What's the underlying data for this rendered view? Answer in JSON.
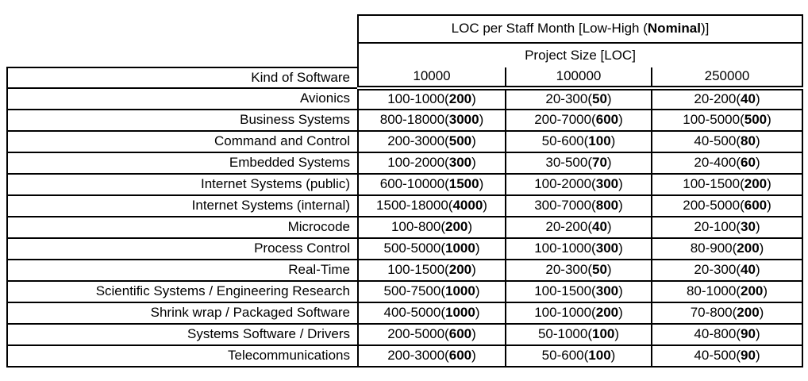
{
  "header": {
    "title": {
      "prefix": "LOC per Staff Month [Low-High (",
      "bold": "Nominal",
      "suffix": ")]"
    },
    "project_size_label": "Project Size [LOC]",
    "kind_of_software_label": "Kind of Software",
    "size_columns": [
      "10000",
      "100000",
      "250000"
    ]
  },
  "rows": [
    {
      "label": "Avionics",
      "values": [
        "100-1000(200)",
        "20-300(50)",
        "20-200(40)"
      ]
    },
    {
      "label": "Business Systems",
      "values": [
        "800-18000(3000)",
        "200-7000(600)",
        "100-5000(500)"
      ]
    },
    {
      "label": "Command and Control",
      "values": [
        "200-3000(500)",
        "50-600(100)",
        "40-500(80)"
      ]
    },
    {
      "label": "Embedded Systems",
      "values": [
        "100-2000(300)",
        "30-500(70)",
        "20-400(60)"
      ]
    },
    {
      "label": "Internet Systems (public)",
      "values": [
        "600-10000(1500)",
        "100-2000(300)",
        "100-1500(200)"
      ]
    },
    {
      "label": "Internet Systems (internal)",
      "values": [
        "1500-18000(4000)",
        "300-7000(800)",
        "200-5000(600)"
      ]
    },
    {
      "label": "Microcode",
      "values": [
        "100-800(200)",
        "20-200(40)",
        "20-100(30)"
      ]
    },
    {
      "label": "Process Control",
      "values": [
        "500-5000(1000)",
        "100-1000(300)",
        "80-900(200)"
      ]
    },
    {
      "label": "Real-Time",
      "values": [
        "100-1500(200)",
        "20-300(50)",
        "20-300(40)"
      ]
    },
    {
      "label": "Scientific Systems / Engineering Research",
      "values": [
        "500-7500(1000)",
        "100-1500(300)",
        "80-1000(200)"
      ]
    },
    {
      "label": "Shrink wrap / Packaged Software",
      "values": [
        "400-5000(1000)",
        "100-1000(200)",
        "70-800(200)"
      ]
    },
    {
      "label": "Systems Software / Drivers",
      "values": [
        "200-5000(600)",
        "50-1000(100)",
        "40-800(90)"
      ]
    },
    {
      "label": "Telecommunications",
      "values": [
        "200-3000(600)",
        "50-600(100)",
        "40-500(90)"
      ]
    }
  ],
  "colors": {
    "border": "#000000",
    "text": "#000000",
    "background": "#ffffff"
  }
}
